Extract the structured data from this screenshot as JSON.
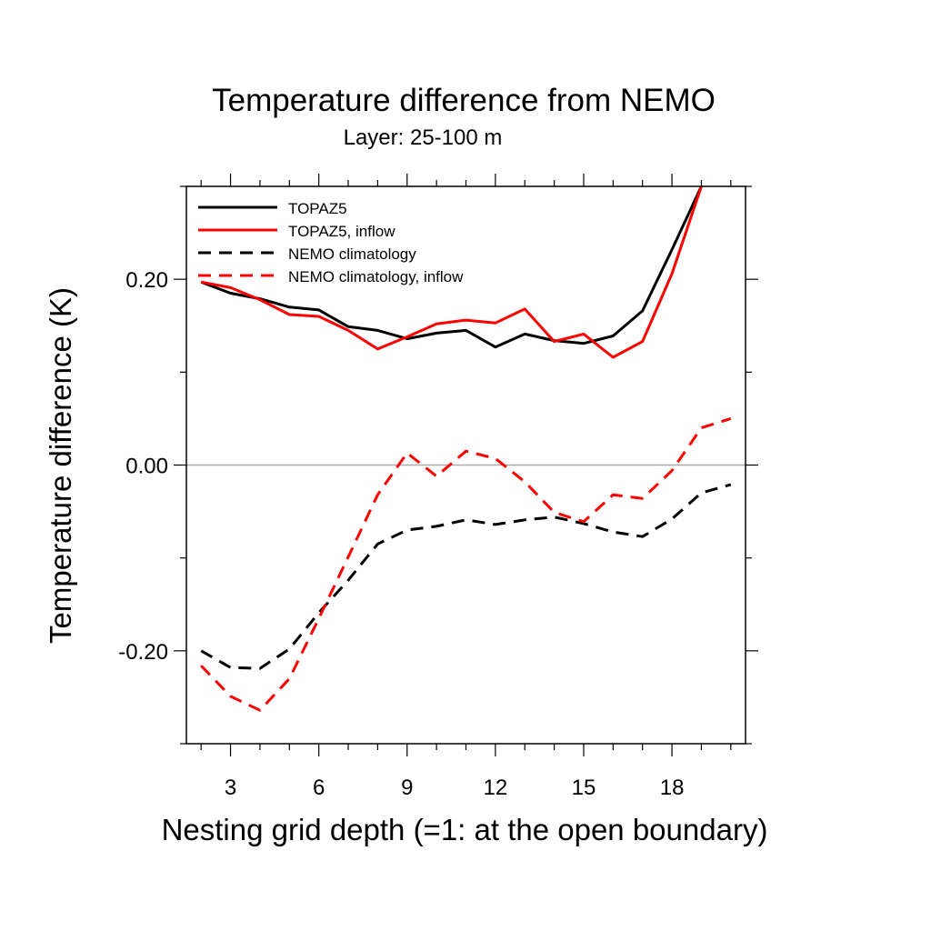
{
  "chart_data": {
    "type": "line",
    "title": "Temperature difference from NEMO",
    "subtitle": "Layer: 25-100 m",
    "xlabel": "Nesting grid depth (=1: at the open boundary)",
    "ylabel": "Temperature difference (K)",
    "xlim": [
      1.5,
      20.5
    ],
    "ylim": [
      -0.3,
      0.3
    ],
    "xticks": [
      3,
      6,
      9,
      12,
      15,
      18
    ],
    "xtick_labels": [
      "3",
      "6",
      "9",
      "12",
      "15",
      "18"
    ],
    "yticks": [
      -0.2,
      0.0,
      0.2
    ],
    "ytick_labels": [
      "-0.20",
      "0.00",
      "0.20"
    ],
    "reference_line_y": 0.0,
    "legend_position": "top-left",
    "series": [
      {
        "name": "TOPAZ5",
        "color": "#000000",
        "dash": "solid",
        "x": [
          2,
          3,
          4,
          5,
          6,
          7,
          8,
          9,
          10,
          11,
          12,
          13,
          14,
          15,
          16,
          17,
          18,
          19
        ],
        "values": [
          0.197,
          0.185,
          0.179,
          0.17,
          0.167,
          0.149,
          0.145,
          0.136,
          0.142,
          0.145,
          0.127,
          0.141,
          0.134,
          0.131,
          0.139,
          0.166,
          0.232,
          0.3
        ]
      },
      {
        "name": "TOPAZ5, inflow",
        "color": "#ff0000",
        "dash": "solid",
        "x": [
          2,
          3,
          4,
          5,
          6,
          7,
          8,
          9,
          10,
          11,
          12,
          13,
          14,
          15,
          16,
          17,
          18,
          19
        ],
        "values": [
          0.197,
          0.191,
          0.178,
          0.162,
          0.16,
          0.145,
          0.125,
          0.138,
          0.152,
          0.156,
          0.153,
          0.168,
          0.133,
          0.141,
          0.116,
          0.133,
          0.206,
          0.3
        ]
      },
      {
        "name": "NEMO climatology",
        "color": "#000000",
        "dash": "dashed",
        "x": [
          2,
          3,
          4,
          5,
          6,
          7,
          8,
          9,
          10,
          11,
          12,
          13,
          14,
          15,
          16,
          17,
          18,
          19,
          20
        ],
        "values": [
          -0.2,
          -0.218,
          -0.219,
          -0.198,
          -0.159,
          -0.124,
          -0.085,
          -0.07,
          -0.066,
          -0.059,
          -0.064,
          -0.059,
          -0.056,
          -0.063,
          -0.072,
          -0.077,
          -0.058,
          -0.03,
          -0.021
        ]
      },
      {
        "name": "NEMO climatology, inflow",
        "color": "#ff0000",
        "dash": "dashed",
        "x": [
          2,
          3,
          4,
          5,
          6,
          7,
          8,
          9,
          10,
          11,
          12,
          13,
          14,
          15,
          16,
          17,
          18,
          19,
          20
        ],
        "values": [
          -0.216,
          -0.249,
          -0.264,
          -0.23,
          -0.165,
          -0.099,
          -0.032,
          0.013,
          -0.012,
          0.015,
          0.007,
          -0.018,
          -0.051,
          -0.061,
          -0.032,
          -0.036,
          -0.006,
          0.04,
          0.05
        ]
      }
    ]
  }
}
